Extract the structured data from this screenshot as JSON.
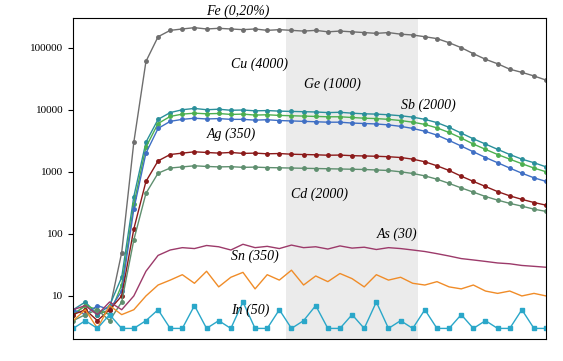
{
  "chart_data": {
    "type": "line",
    "x": [
      0,
      1,
      2,
      3,
      4,
      5,
      6,
      7,
      8,
      9,
      10,
      11,
      12,
      13,
      14,
      15,
      16,
      17,
      18,
      19,
      20,
      21,
      22,
      23,
      24,
      25,
      26,
      27,
      28,
      29,
      30,
      31,
      32,
      33,
      34,
      35,
      36,
      37,
      38,
      39
    ],
    "xlim": [
      0,
      39
    ],
    "xticks": [],
    "ylim": [
      2,
      300000
    ],
    "yticks": [
      10,
      100,
      1000,
      10000,
      100000
    ],
    "log": "y",
    "grid": false,
    "tick_labels": "y",
    "series": [
      {
        "name": "Fe (0,20%)",
        "color": "#6e6e6e",
        "marker": "o",
        "line_style": "solid",
        "values": [
          5,
          7,
          5,
          6,
          50,
          3000,
          60000,
          150000,
          190000,
          200000,
          210000,
          200000,
          205000,
          200000,
          195000,
          200000,
          190000,
          195000,
          190000,
          185000,
          190000,
          180000,
          185000,
          180000,
          175000,
          170000,
          175000,
          165000,
          160000,
          150000,
          140000,
          120000,
          100000,
          80000,
          65000,
          55000,
          45000,
          40000,
          35000,
          30000
        ]
      },
      {
        "name": "Cu (4000)",
        "color": "#2a8f9a",
        "marker": "o",
        "line_style": "solid",
        "values": [
          6,
          8,
          5,
          7,
          20,
          400,
          3000,
          7000,
          9000,
          10000,
          10500,
          10000,
          10200,
          9800,
          9900,
          9600,
          9700,
          9500,
          9400,
          9300,
          9200,
          9000,
          9100,
          8800,
          8600,
          8500,
          8300,
          8000,
          7600,
          7000,
          6200,
          5200,
          4200,
          3400,
          2800,
          2300,
          1900,
          1600,
          1400,
          1200
        ]
      },
      {
        "name": "Ge (1000)",
        "color": "#4caf50",
        "marker": "o",
        "line_style": "solid",
        "values": [
          5,
          7,
          6,
          5,
          15,
          300,
          2500,
          6000,
          7800,
          8500,
          8800,
          8600,
          8700,
          8400,
          8500,
          8200,
          8300,
          8100,
          8000,
          7900,
          7800,
          7700,
          7700,
          7500,
          7300,
          7200,
          7000,
          6700,
          6300,
          5800,
          5100,
          4300,
          3500,
          2800,
          2300,
          1900,
          1600,
          1350,
          1150,
          1000
        ]
      },
      {
        "name": "Sb (2000)",
        "color": "#3f6fc4",
        "marker": "o",
        "line_style": "solid",
        "values": [
          6,
          5,
          7,
          6,
          12,
          250,
          2000,
          5000,
          6500,
          7000,
          7300,
          7100,
          7200,
          7000,
          7000,
          6800,
          6900,
          6700,
          6600,
          6500,
          6400,
          6300,
          6300,
          6100,
          6000,
          5900,
          5700,
          5400,
          5000,
          4500,
          3900,
          3200,
          2600,
          2100,
          1700,
          1400,
          1150,
          950,
          800,
          700
        ]
      },
      {
        "name": "Ag (350)",
        "color": "#8b1a1a",
        "marker": "o",
        "line_style": "solid",
        "values": [
          5,
          6,
          4,
          6,
          10,
          120,
          700,
          1500,
          1900,
          2000,
          2100,
          2050,
          2000,
          2050,
          1980,
          2000,
          1950,
          1970,
          1920,
          1900,
          1880,
          1850,
          1860,
          1820,
          1800,
          1780,
          1750,
          1700,
          1600,
          1450,
          1250,
          1050,
          850,
          700,
          580,
          480,
          410,
          360,
          320,
          290
        ]
      },
      {
        "name": "Cd (2000)",
        "color": "#5f8f6f",
        "marker": "o",
        "line_style": "solid",
        "values": [
          4,
          5,
          6,
          4,
          8,
          80,
          450,
          950,
          1150,
          1200,
          1250,
          1220,
          1200,
          1210,
          1180,
          1190,
          1170,
          1160,
          1150,
          1140,
          1130,
          1120,
          1110,
          1100,
          1090,
          1070,
          1050,
          1000,
          940,
          860,
          760,
          650,
          550,
          470,
          400,
          350,
          310,
          280,
          250,
          230
        ]
      },
      {
        "name": "As (30)",
        "color": "#9c3a6a",
        "marker": "none",
        "line_style": "solid",
        "values": [
          6,
          7,
          5,
          8,
          6,
          10,
          25,
          45,
          55,
          60,
          58,
          65,
          62,
          55,
          68,
          60,
          63,
          58,
          66,
          60,
          62,
          57,
          64,
          59,
          61,
          56,
          60,
          58,
          55,
          52,
          48,
          44,
          40,
          38,
          36,
          34,
          33,
          31,
          30,
          29
        ]
      },
      {
        "name": "Sn (350)",
        "color": "#f08c28",
        "marker": "none",
        "line_style": "solid",
        "values": [
          4,
          6,
          3,
          7,
          5,
          6,
          10,
          15,
          18,
          22,
          16,
          25,
          14,
          20,
          24,
          13,
          22,
          18,
          26,
          15,
          21,
          17,
          23,
          19,
          14,
          22,
          18,
          20,
          16,
          15,
          17,
          14,
          13,
          15,
          12,
          11,
          12,
          10,
          11,
          10
        ]
      },
      {
        "name": "In (50)",
        "color": "#2aa7c9",
        "marker": "s",
        "line_style": "solid",
        "values": [
          3,
          4,
          3,
          5,
          3,
          3,
          4,
          6,
          3,
          3,
          7,
          3,
          4,
          3,
          8,
          3,
          3,
          6,
          3,
          4,
          7,
          3,
          3,
          5,
          3,
          8,
          3,
          4,
          3,
          6,
          3,
          3,
          5,
          3,
          4,
          3,
          3,
          6,
          3,
          3
        ]
      }
    ]
  }
}
